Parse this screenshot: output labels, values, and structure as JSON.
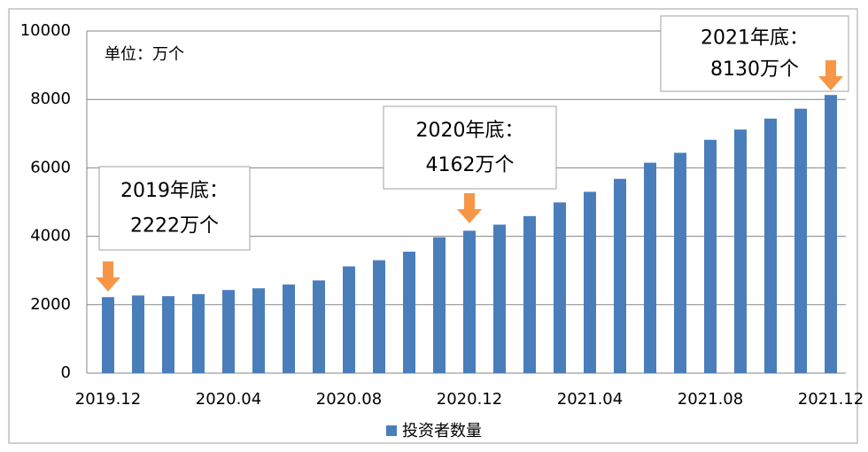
{
  "chart_data": {
    "type": "bar",
    "categories": [
      "2019.12",
      null,
      null,
      null,
      "2020.04",
      null,
      null,
      null,
      "2020.08",
      null,
      null,
      null,
      "2020.12",
      null,
      null,
      null,
      "2021.04",
      null,
      null,
      null,
      "2021.08",
      null,
      null,
      null,
      "2021.12"
    ],
    "series": [
      {
        "name": "投资者数量",
        "color": "#4a7ebb",
        "values": [
          2222,
          2270,
          2250,
          2310,
          2430,
          2480,
          2590,
          2710,
          3120,
          3300,
          3550,
          3970,
          4162,
          4340,
          4590,
          4990,
          5300,
          5680,
          6150,
          6440,
          6820,
          7120,
          7440,
          7730,
          8130
        ]
      }
    ],
    "ylim": [
      0,
      10000
    ],
    "yticks": [
      0,
      2000,
      4000,
      6000,
      8000,
      10000
    ],
    "grid": true,
    "unit_note": "单位：万个",
    "annotations": [
      {
        "lines": [
          "2019年底：",
          "2222万个"
        ]
      },
      {
        "lines": [
          "2020年底：",
          "4162万个"
        ]
      },
      {
        "lines": [
          "2021年底：",
          "8130万个"
        ]
      }
    ]
  }
}
